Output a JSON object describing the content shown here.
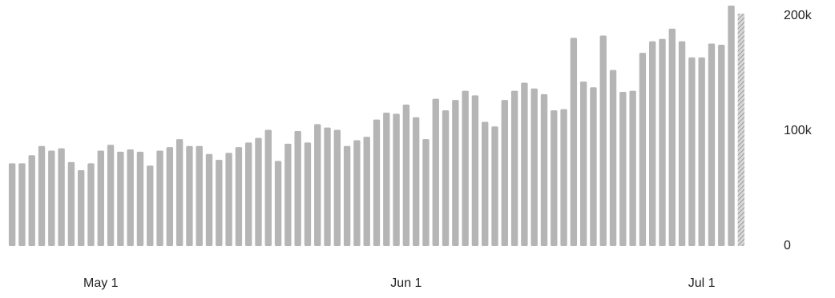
{
  "chart_data": {
    "type": "bar",
    "categories": [
      null,
      null,
      null,
      null,
      null,
      null,
      null,
      null,
      null,
      "May 1",
      null,
      null,
      null,
      null,
      null,
      null,
      null,
      null,
      null,
      null,
      null,
      null,
      null,
      null,
      null,
      null,
      null,
      null,
      null,
      null,
      null,
      null,
      null,
      null,
      null,
      null,
      null,
      null,
      null,
      null,
      "Jun 1",
      null,
      null,
      null,
      null,
      null,
      null,
      null,
      null,
      null,
      null,
      null,
      null,
      null,
      null,
      null,
      null,
      null,
      null,
      null,
      null,
      null,
      null,
      null,
      null,
      null,
      null,
      null,
      null,
      null,
      "Jul 1",
      null,
      null,
      null,
      null
    ],
    "values": [
      72000,
      72000,
      79000,
      87000,
      83000,
      85000,
      73000,
      66000,
      72000,
      83000,
      88000,
      82000,
      84000,
      82000,
      70000,
      83000,
      86000,
      93000,
      87000,
      87000,
      80000,
      75000,
      81000,
      86000,
      90000,
      94000,
      101000,
      74000,
      89000,
      100000,
      90000,
      106000,
      103000,
      101000,
      87000,
      92000,
      95000,
      110000,
      116000,
      115000,
      123000,
      112000,
      93000,
      128000,
      118000,
      127000,
      135000,
      131000,
      108000,
      104000,
      127000,
      135000,
      142000,
      137000,
      132000,
      118000,
      119000,
      181000,
      143000,
      138000,
      183000,
      153000,
      134000,
      135000,
      168000,
      178000,
      180000,
      189000,
      178000,
      164000,
      164000,
      176000,
      175000,
      209000,
      202000
    ],
    "color": "#b5b5b5",
    "hatched_indices": [
      74
    ],
    "ylim": [
      0,
      210000
    ],
    "yticks": [
      {
        "value": 0,
        "label": "0"
      },
      {
        "value": 100000,
        "label": "100k"
      },
      {
        "value": 200000,
        "label": "200k"
      }
    ],
    "grid": false
  }
}
